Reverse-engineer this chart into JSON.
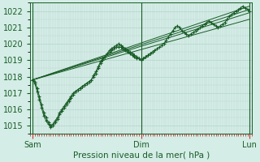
{
  "xlabel": "Pression niveau de la mer( hPa )",
  "background_color": "#d4ede6",
  "grid_color": "#b8d8d0",
  "line_color": "#1a5c28",
  "tick_color": "#cc3333",
  "ylim": [
    1014.5,
    1022.5
  ],
  "yticks": [
    1015,
    1016,
    1017,
    1018,
    1019,
    1020,
    1021,
    1022
  ],
  "day_labels": [
    "Sam",
    "Dim",
    "Lun"
  ],
  "day_positions": [
    0,
    48,
    96
  ],
  "xlim": [
    -1,
    97
  ],
  "straight_lines": [
    [
      [
        0,
        1017.8
      ],
      [
        96,
        1022.1
      ]
    ],
    [
      [
        0,
        1017.8
      ],
      [
        96,
        1022.3
      ]
    ],
    [
      [
        0,
        1017.8
      ],
      [
        96,
        1021.9
      ]
    ],
    [
      [
        0,
        1017.8
      ],
      [
        96,
        1021.5
      ]
    ]
  ],
  "detail_line": [
    1017.8,
    1017.7,
    1017.3,
    1016.8,
    1016.3,
    1015.8,
    1015.5,
    1015.2,
    1015.0,
    1015.1,
    1015.3,
    1015.5,
    1015.8,
    1016.0,
    1016.2,
    1016.4,
    1016.6,
    1016.8,
    1017.0,
    1017.1,
    1017.2,
    1017.3,
    1017.4,
    1017.5,
    1017.6,
    1017.7,
    1017.8,
    1018.0,
    1018.2,
    1018.5,
    1018.8,
    1019.0,
    1019.2,
    1019.4,
    1019.6,
    1019.7,
    1019.8,
    1019.9,
    1020.0,
    1019.9,
    1019.8,
    1019.7,
    1019.6,
    1019.5,
    1019.4,
    1019.3,
    1019.2,
    1019.1,
    1019.0,
    1019.1,
    1019.2,
    1019.3,
    1019.4,
    1019.5,
    1019.6,
    1019.7,
    1019.8,
    1019.9,
    1020.0,
    1020.2,
    1020.4,
    1020.6,
    1020.8,
    1021.0,
    1021.1,
    1021.0,
    1020.8,
    1020.7,
    1020.6,
    1020.5,
    1020.6,
    1020.7,
    1020.8,
    1020.9,
    1021.0,
    1021.1,
    1021.2,
    1021.3,
    1021.4,
    1021.3,
    1021.2,
    1021.1,
    1021.0,
    1021.1,
    1021.2,
    1021.3,
    1021.5,
    1021.7,
    1021.8,
    1021.9,
    1022.0,
    1022.1,
    1022.2,
    1022.3,
    1022.2,
    1022.1,
    1022.0
  ],
  "detail_line2": [
    1017.8,
    1017.6,
    1017.1,
    1016.6,
    1016.1,
    1015.6,
    1015.3,
    1015.1,
    1014.9,
    1015.0,
    1015.2,
    1015.4,
    1015.7,
    1015.9,
    1016.1,
    1016.3,
    1016.5,
    1016.7,
    1016.9,
    1017.1,
    1017.2,
    1017.3,
    1017.4,
    1017.5,
    1017.6,
    1017.7,
    1017.8,
    1018.1,
    1018.3,
    1018.6,
    1018.9,
    1019.1,
    1019.2,
    1019.4,
    1019.5,
    1019.6,
    1019.7,
    1019.8,
    1019.8,
    1019.8,
    1019.7,
    1019.6,
    1019.5,
    1019.4,
    1019.3,
    1019.2,
    1019.1,
    1019.1,
    1019.0,
    1019.1,
    1019.2,
    1019.3,
    1019.4,
    1019.5
  ]
}
